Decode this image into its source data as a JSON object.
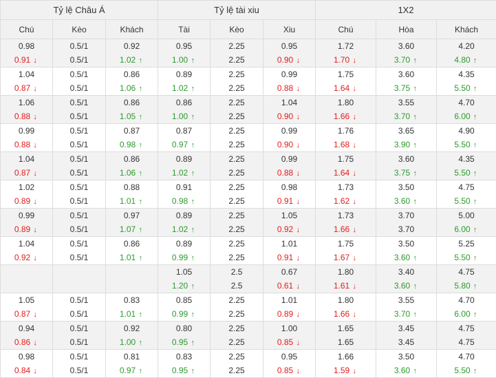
{
  "colors": {
    "down": "#e31c1c",
    "up": "#2d9a2d",
    "header_bg": "#f1f1f1",
    "shade_bg": "#f2f2f2"
  },
  "headers": {
    "asian": "Tỷ lệ Châu Á",
    "overunder": "Tỷ lệ tài xiu",
    "x12": "1X2",
    "cols": [
      "Chú",
      "Kèo",
      "Khách",
      "Tài",
      "Kèo",
      "Xiu",
      "Chú",
      "Hòa",
      "Khách"
    ]
  },
  "rows": [
    {
      "cells": [
        [
          "0.98",
          [
            "0.91",
            "down"
          ]
        ],
        [
          "0.5/1",
          [
            "0.5/1",
            ""
          ]
        ],
        [
          "0.92",
          [
            "1.02",
            "up"
          ]
        ],
        [
          "0.95",
          [
            "1.00",
            "up"
          ]
        ],
        [
          "2.25",
          [
            "2.25",
            ""
          ]
        ],
        [
          "0.95",
          [
            "0.90",
            "down"
          ]
        ],
        [
          "1.72",
          [
            "1.70",
            "down"
          ]
        ],
        [
          "3.60",
          [
            "3.70",
            "up"
          ]
        ],
        [
          "4.20",
          [
            "4.80",
            "up"
          ]
        ]
      ]
    },
    {
      "cells": [
        [
          "1.04",
          [
            "0.87",
            "down"
          ]
        ],
        [
          "0.5/1",
          [
            "0.5/1",
            ""
          ]
        ],
        [
          "0.86",
          [
            "1.06",
            "up"
          ]
        ],
        [
          "0.89",
          [
            "1.02",
            "up"
          ]
        ],
        [
          "2.25",
          [
            "2.25",
            ""
          ]
        ],
        [
          "0.99",
          [
            "0.88",
            "down"
          ]
        ],
        [
          "1.75",
          [
            "1.64",
            "down"
          ]
        ],
        [
          "3.60",
          [
            "3.75",
            "up"
          ]
        ],
        [
          "4.35",
          [
            "5.50",
            "up"
          ]
        ]
      ]
    },
    {
      "cells": [
        [
          "1.06",
          [
            "0.88",
            "down"
          ]
        ],
        [
          "0.5/1",
          [
            "0.5/1",
            ""
          ]
        ],
        [
          "0.86",
          [
            "1.05",
            "up"
          ]
        ],
        [
          "0.86",
          [
            "1.00",
            "up"
          ]
        ],
        [
          "2.25",
          [
            "2.25",
            ""
          ]
        ],
        [
          "1.04",
          [
            "0.90",
            "down"
          ]
        ],
        [
          "1.80",
          [
            "1.66",
            "down"
          ]
        ],
        [
          "3.55",
          [
            "3.70",
            "up"
          ]
        ],
        [
          "4.70",
          [
            "6.00",
            "up"
          ]
        ]
      ]
    },
    {
      "cells": [
        [
          "0.99",
          [
            "0.88",
            "down"
          ]
        ],
        [
          "0.5/1",
          [
            "0.5/1",
            ""
          ]
        ],
        [
          "0.87",
          [
            "0.98",
            "up"
          ]
        ],
        [
          "0.87",
          [
            "0.97",
            "up"
          ]
        ],
        [
          "2.25",
          [
            "2.25",
            ""
          ]
        ],
        [
          "0.99",
          [
            "0.90",
            "down"
          ]
        ],
        [
          "1.76",
          [
            "1.68",
            "down"
          ]
        ],
        [
          "3.65",
          [
            "3.90",
            "up"
          ]
        ],
        [
          "4.90",
          [
            "5.50",
            "up"
          ]
        ]
      ]
    },
    {
      "cells": [
        [
          "1.04",
          [
            "0.87",
            "down"
          ]
        ],
        [
          "0.5/1",
          [
            "0.5/1",
            ""
          ]
        ],
        [
          "0.86",
          [
            "1.06",
            "up"
          ]
        ],
        [
          "0.89",
          [
            "1.02",
            "up"
          ]
        ],
        [
          "2.25",
          [
            "2.25",
            ""
          ]
        ],
        [
          "0.99",
          [
            "0.88",
            "down"
          ]
        ],
        [
          "1.75",
          [
            "1.64",
            "down"
          ]
        ],
        [
          "3.60",
          [
            "3.75",
            "up"
          ]
        ],
        [
          "4.35",
          [
            "5.50",
            "up"
          ]
        ]
      ]
    },
    {
      "cells": [
        [
          "1.02",
          [
            "0.89",
            "down"
          ]
        ],
        [
          "0.5/1",
          [
            "0.5/1",
            ""
          ]
        ],
        [
          "0.88",
          [
            "1.01",
            "up"
          ]
        ],
        [
          "0.91",
          [
            "0.98",
            "up"
          ]
        ],
        [
          "2.25",
          [
            "2.25",
            ""
          ]
        ],
        [
          "0.98",
          [
            "0.91",
            "down"
          ]
        ],
        [
          "1.73",
          [
            "1.62",
            "down"
          ]
        ],
        [
          "3.50",
          [
            "3.60",
            "up"
          ]
        ],
        [
          "4.75",
          [
            "5.50",
            "up"
          ]
        ]
      ]
    },
    {
      "cells": [
        [
          "0.99",
          [
            "0.89",
            "down"
          ]
        ],
        [
          "0.5/1",
          [
            "0.5/1",
            ""
          ]
        ],
        [
          "0.97",
          [
            "1.07",
            "up"
          ]
        ],
        [
          "0.89",
          [
            "1.02",
            "up"
          ]
        ],
        [
          "2.25",
          [
            "2.25",
            ""
          ]
        ],
        [
          "1.05",
          [
            "0.92",
            "down"
          ]
        ],
        [
          "1.73",
          [
            "1.66",
            "down"
          ]
        ],
        [
          "3.70",
          [
            "3.70",
            ""
          ]
        ],
        [
          "5.00",
          [
            "6.00",
            "up"
          ]
        ]
      ]
    },
    {
      "cells": [
        [
          "1.04",
          [
            "0.92",
            "down"
          ]
        ],
        [
          "0.5/1",
          [
            "0.5/1",
            ""
          ]
        ],
        [
          "0.86",
          [
            "1.01",
            "up"
          ]
        ],
        [
          "0.89",
          [
            "0.99",
            "up"
          ]
        ],
        [
          "2.25",
          [
            "2.25",
            ""
          ]
        ],
        [
          "1.01",
          [
            "0.91",
            "down"
          ]
        ],
        [
          "1.75",
          [
            "1.67",
            "down"
          ]
        ],
        [
          "3.50",
          [
            "3.60",
            "up"
          ]
        ],
        [
          "5.25",
          [
            "5.50",
            "up"
          ]
        ]
      ]
    },
    {
      "cells": [
        [
          "",
          [
            "",
            ""
          ]
        ],
        [
          "",
          [
            "",
            ""
          ]
        ],
        [
          "",
          [
            "",
            ""
          ]
        ],
        [
          "1.05",
          [
            "1.20",
            "up"
          ]
        ],
        [
          "2.5",
          [
            "2.5",
            ""
          ]
        ],
        [
          "0.67",
          [
            "0.61",
            "down"
          ]
        ],
        [
          "1.80",
          [
            "1.61",
            "down"
          ]
        ],
        [
          "3.40",
          [
            "3.60",
            "up"
          ]
        ],
        [
          "4.75",
          [
            "5.80",
            "up"
          ]
        ]
      ]
    },
    {
      "cells": [
        [
          "1.05",
          [
            "0.87",
            "down"
          ]
        ],
        [
          "0.5/1",
          [
            "0.5/1",
            ""
          ]
        ],
        [
          "0.83",
          [
            "1.01",
            "up"
          ]
        ],
        [
          "0.85",
          [
            "0.99",
            "up"
          ]
        ],
        [
          "2.25",
          [
            "2.25",
            ""
          ]
        ],
        [
          "1.01",
          [
            "0.89",
            "down"
          ]
        ],
        [
          "1.80",
          [
            "1.66",
            "down"
          ]
        ],
        [
          "3.55",
          [
            "3.70",
            "up"
          ]
        ],
        [
          "4.70",
          [
            "6.00",
            "up"
          ]
        ]
      ]
    },
    {
      "cells": [
        [
          "0.94",
          [
            "0.86",
            "down"
          ]
        ],
        [
          "0.5/1",
          [
            "0.5/1",
            ""
          ]
        ],
        [
          "0.92",
          [
            "1.00",
            "up"
          ]
        ],
        [
          "0.80",
          [
            "0.95",
            "up"
          ]
        ],
        [
          "2.25",
          [
            "2.25",
            ""
          ]
        ],
        [
          "1.00",
          [
            "0.85",
            "down"
          ]
        ],
        [
          "1.65",
          [
            "1.65",
            ""
          ]
        ],
        [
          "3.45",
          [
            "3.45",
            ""
          ]
        ],
        [
          "4.75",
          [
            "4.75",
            ""
          ]
        ]
      ]
    },
    {
      "cells": [
        [
          "0.98",
          [
            "0.84",
            "down"
          ]
        ],
        [
          "0.5/1",
          [
            "0.5/1",
            ""
          ]
        ],
        [
          "0.81",
          [
            "0.97",
            "up"
          ]
        ],
        [
          "0.83",
          [
            "0.95",
            "up"
          ]
        ],
        [
          "2.25",
          [
            "2.25",
            ""
          ]
        ],
        [
          "0.95",
          [
            "0.85",
            "down"
          ]
        ],
        [
          "1.66",
          [
            "1.59",
            "down"
          ]
        ],
        [
          "3.50",
          [
            "3.60",
            "up"
          ]
        ],
        [
          "4.70",
          [
            "5.50",
            "up"
          ]
        ]
      ]
    }
  ]
}
